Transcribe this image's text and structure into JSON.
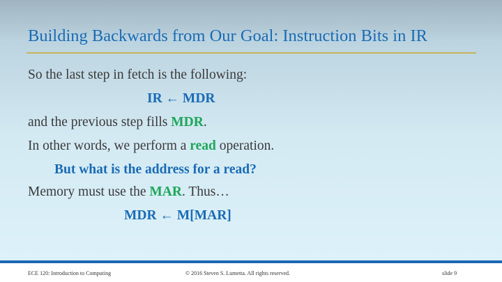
{
  "slide": {
    "title": "Building Backwards from Our Goal: Instruction Bits in IR",
    "lines": {
      "l1": "So the last step in fetch is the following:",
      "l2": "IR ← MDR",
      "l3a": "and the previous step fills ",
      "l3b": "MDR",
      "l3c": ".",
      "l4a": "In other words, we perform a ",
      "l4b": "read",
      "l4c": " operation.",
      "l5": "But what is the address for a read?",
      "l6a": "Memory must use the ",
      "l6b": "MAR",
      "l6c": ".  Thus…",
      "l7": "MDR ← M[MAR]"
    }
  },
  "footer": {
    "course": "ECE 120: Introduction to Computing",
    "copyright": "© 2016 Steven S. Lumetta.  All rights reserved.",
    "slide_number": "slide 9"
  },
  "colors": {
    "accent_blue": "#1a6bb5",
    "accent_green": "#1ea65a",
    "rule": "#c8b45a"
  }
}
